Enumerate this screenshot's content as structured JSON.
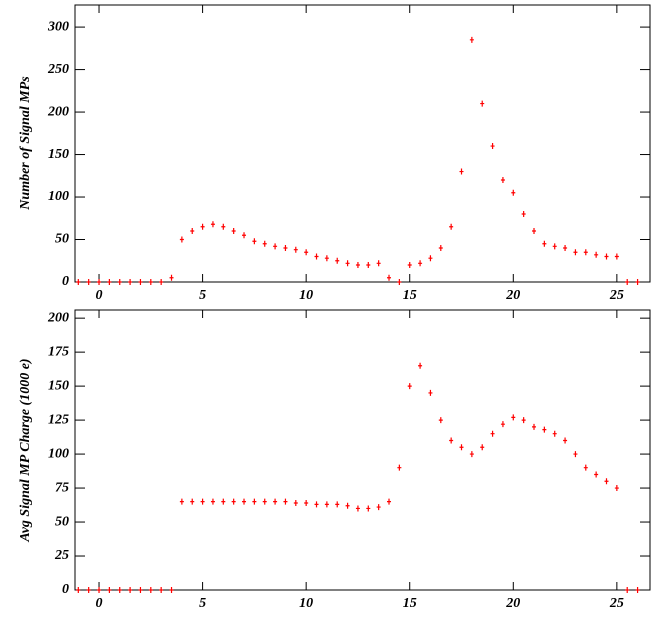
{
  "chart_data": [
    {
      "type": "scatter",
      "y_label": "Number of  Signal MPs",
      "color": "#ff0000",
      "x": [
        -1,
        -0.5,
        0,
        0.5,
        1,
        1.5,
        2,
        2.5,
        3,
        3.5,
        4,
        4.5,
        5,
        5.5,
        6,
        6.5,
        7,
        7.5,
        8,
        8.5,
        9,
        9.5,
        10,
        10.5,
        11,
        11.5,
        12,
        12.5,
        13,
        13.5,
        14,
        14.5,
        15,
        15.5,
        16,
        16.5,
        17,
        17.5,
        18,
        18.5,
        19,
        19.5,
        20,
        20.5,
        21,
        21.5,
        22,
        22.5,
        23,
        23.5,
        24,
        24.5,
        25,
        25.5,
        26
      ],
      "values": [
        0,
        0,
        0,
        0,
        0,
        0,
        0,
        0,
        0,
        5,
        50,
        60,
        65,
        68,
        65,
        60,
        55,
        48,
        45,
        42,
        40,
        38,
        35,
        30,
        28,
        25,
        22,
        20,
        20,
        22,
        5,
        0,
        20,
        22,
        28,
        40,
        65,
        130,
        285,
        210,
        160,
        120,
        105,
        80,
        60,
        45,
        42,
        40,
        35,
        35,
        32,
        30,
        30,
        0,
        0
      ],
      "xlim": [
        -1.16,
        26.6
      ],
      "ylim": [
        0,
        326
      ],
      "xticks": [
        0,
        5,
        10,
        15,
        20,
        25
      ],
      "yticks": [
        0,
        50,
        100,
        150,
        200,
        250,
        300
      ]
    },
    {
      "type": "scatter",
      "y_label": "Avg Signal MP Charge (1000 e)",
      "color": "#ff0000",
      "x": [
        -1,
        -0.5,
        0,
        0.5,
        1,
        1.5,
        2,
        2.5,
        3,
        3.5,
        4,
        4.5,
        5,
        5.5,
        6,
        6.5,
        7,
        7.5,
        8,
        8.5,
        9,
        9.5,
        10,
        10.5,
        11,
        11.5,
        12,
        12.5,
        13,
        13.5,
        14,
        14.5,
        15,
        15.5,
        16,
        16.5,
        17,
        17.5,
        18,
        18.5,
        19,
        19.5,
        20,
        20.5,
        21,
        21.5,
        22,
        22.5,
        23,
        23.5,
        24,
        24.5,
        25,
        25.5,
        26
      ],
      "values": [
        0,
        0,
        0,
        0,
        0,
        0,
        0,
        0,
        0,
        0,
        65,
        65,
        65,
        65,
        65,
        65,
        65,
        65,
        65,
        65,
        65,
        64,
        64,
        63,
        63,
        63,
        62,
        60,
        60,
        61,
        65,
        90,
        150,
        165,
        145,
        125,
        110,
        105,
        100,
        105,
        115,
        122,
        127,
        125,
        120,
        118,
        115,
        110,
        100,
        90,
        85,
        80,
        75,
        0,
        0
      ],
      "xlim": [
        -1.16,
        26.6
      ],
      "ylim": [
        0,
        206
      ],
      "xticks": [
        0,
        5,
        10,
        15,
        20,
        25
      ],
      "yticks": [
        0,
        25,
        50,
        75,
        100,
        125,
        150,
        175,
        200
      ]
    }
  ]
}
